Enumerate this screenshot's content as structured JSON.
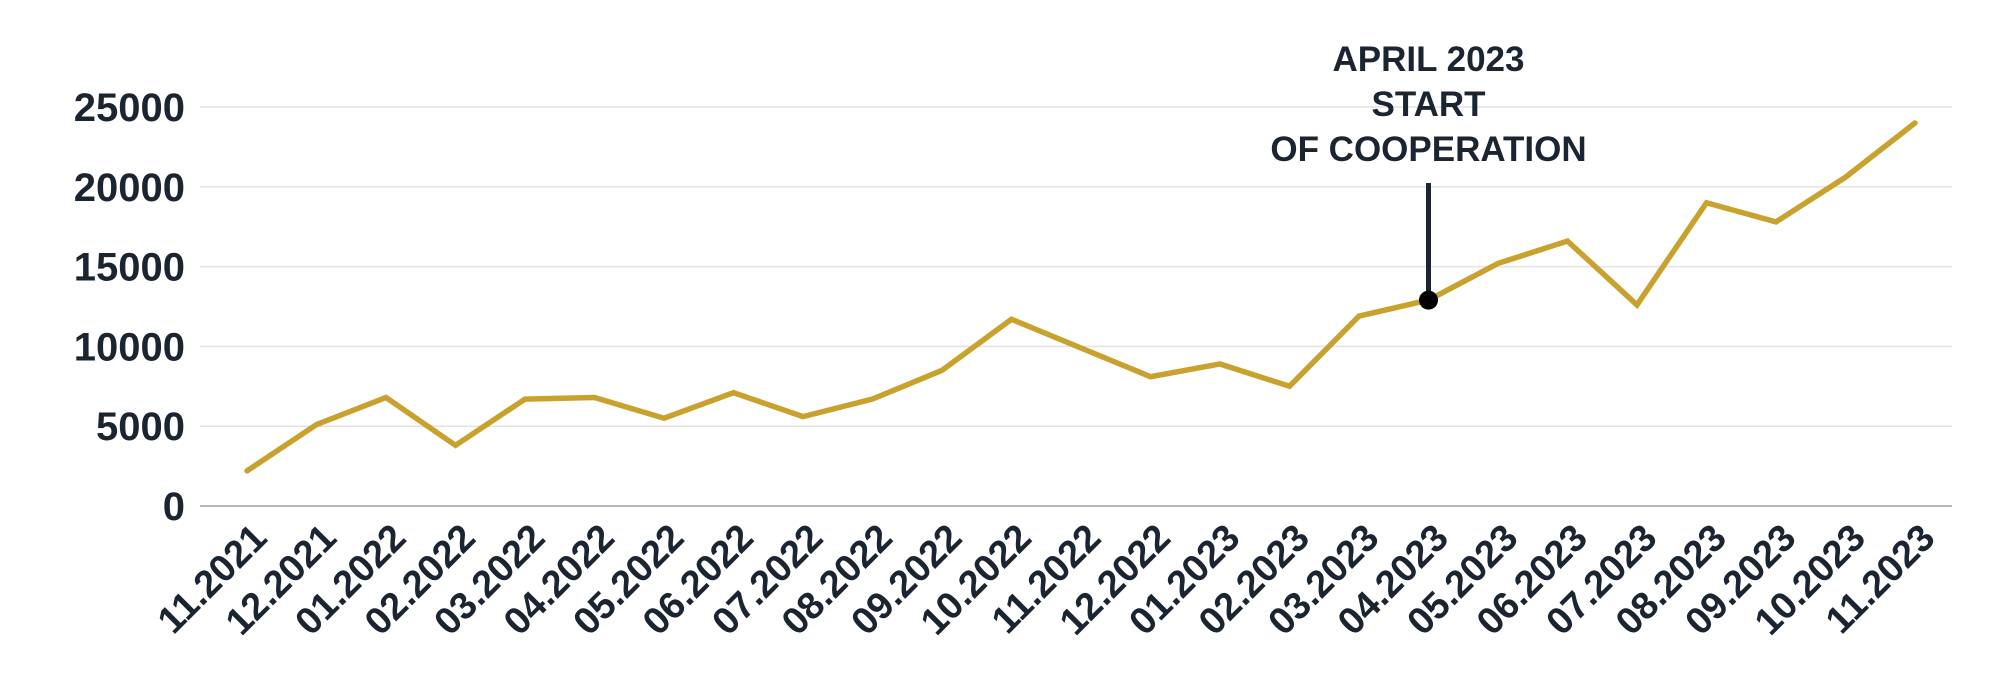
{
  "chart_data": {
    "type": "line",
    "title": "",
    "xlabel": "",
    "ylabel": "",
    "ylim": [
      0,
      25000
    ],
    "yticks": [
      "0",
      "5000",
      "10000",
      "15000",
      "20000",
      "25000"
    ],
    "grid": true,
    "categories": [
      "11.2021",
      "12.2021",
      "01.2022",
      "02.2022",
      "03.2022",
      "04.2022",
      "05.2022",
      "06.2022",
      "07.2022",
      "08.2022",
      "09.2022",
      "10.2022",
      "11.2022",
      "12.2022",
      "01.2023",
      "02.2023",
      "03.2023",
      "04.2023",
      "05.2023",
      "06.2023",
      "07.2023",
      "08.2023",
      "09.2023",
      "10.2023",
      "11.2023"
    ],
    "series": [
      {
        "values": [
          2200,
          5100,
          6800,
          3800,
          6700,
          6800,
          5500,
          7100,
          5600,
          6700,
          8500,
          11700,
          9900,
          8100,
          8900,
          7500,
          11900,
          12900,
          15200,
          16600,
          12600,
          19000,
          17800,
          20600,
          24000
        ]
      }
    ],
    "annotation": {
      "category": "04.2023",
      "value": 12900,
      "lines": [
        "APRIL 2023",
        "START",
        "OF COOPERATION"
      ]
    },
    "colors": {
      "line": "#c9a22e",
      "text": "#1b2532",
      "marker": "#000000"
    }
  }
}
